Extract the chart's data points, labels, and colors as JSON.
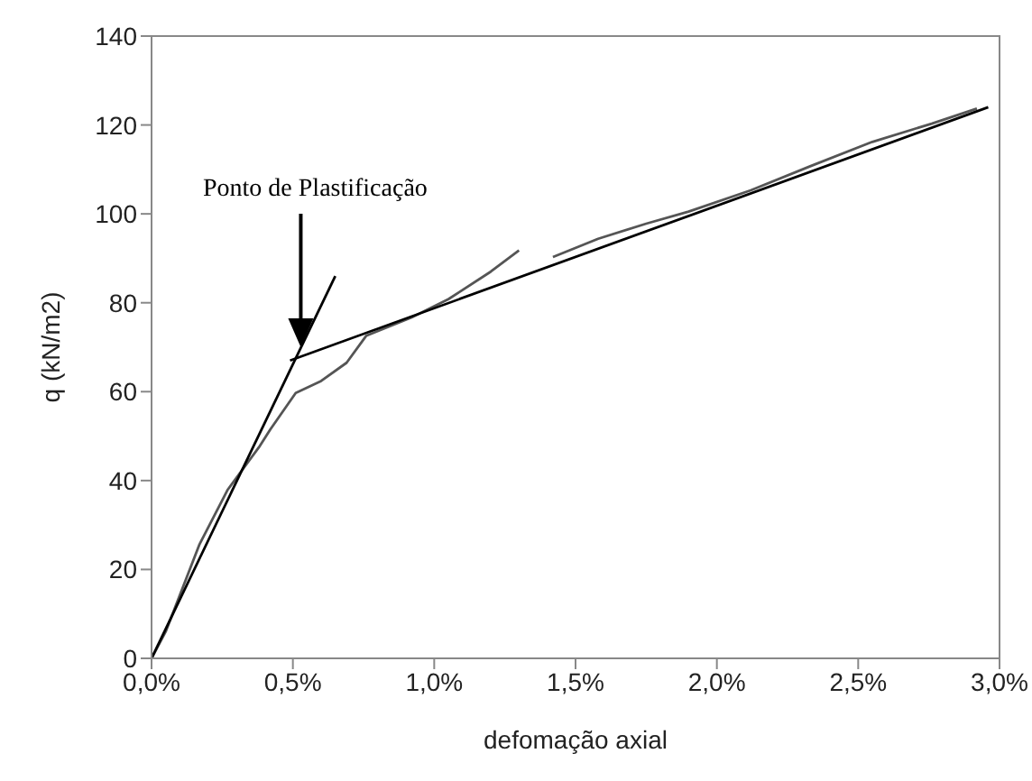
{
  "chart_data": {
    "type": "line",
    "xlabel": "defomação axial",
    "ylabel": "q (kN/m2)",
    "xlim": [
      0,
      3
    ],
    "xticks": [
      {
        "value": 0,
        "label": "0,0%"
      },
      {
        "value": 0.5,
        "label": "0,5%"
      },
      {
        "value": 1,
        "label": "1,0%"
      },
      {
        "value": 1.5,
        "label": "1,5%"
      },
      {
        "value": 2,
        "label": "2,0%"
      },
      {
        "value": 2.5,
        "label": "2,5%"
      },
      {
        "value": 3,
        "label": "3,0%"
      }
    ],
    "ylim": [
      0,
      140
    ],
    "yticks": [
      0,
      20,
      40,
      60,
      80,
      100,
      120,
      140
    ],
    "marker": "none",
    "line_style": "solid",
    "annotations": [
      "Ponto de Plastificação"
    ],
    "series": [
      {
        "color": "#555555",
        "x": [
          0,
          0.05,
          0.17,
          0.27,
          0.38,
          0.42,
          0.51,
          0.6,
          0.69,
          0.76,
          0.92,
          1.05,
          1.2,
          1.3,
          1.36,
          1.42,
          1.58,
          1.75,
          1.9,
          2.12,
          2.33,
          2.55,
          2.76,
          2.92
        ],
        "values": [
          0,
          6,
          25.7,
          38,
          47.5,
          51.5,
          59.7,
          62.4,
          66.5,
          72.6,
          76.7,
          80.8,
          87,
          91.8,
          null,
          90.3,
          94.4,
          97.8,
          100.5,
          105.3,
          110.7,
          116.2,
          120.3,
          123.7
        ]
      },
      {
        "type": "line",
        "color": "#000000",
        "x": [
          0,
          0.65
        ],
        "values": [
          0,
          86
        ]
      },
      {
        "type": "line",
        "color": "#000000",
        "x": [
          0.49,
          2.96
        ],
        "values": [
          67,
          124
        ]
      }
    ]
  }
}
